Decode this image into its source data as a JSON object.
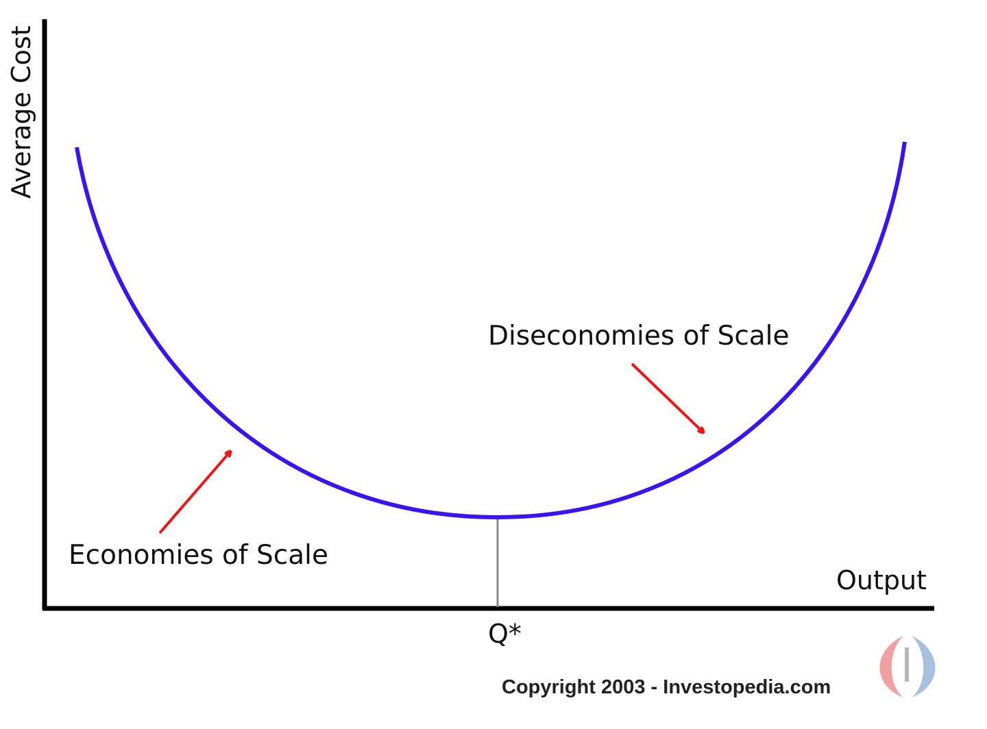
{
  "diagram": {
    "y_axis_label": "Average Cost",
    "x_axis_label": "Output",
    "x_marker_label": "Q*",
    "annotations": {
      "left": "Economies of Scale",
      "right": "Diseconomies of Scale"
    },
    "copyright": "Copyright 2003 - Investopedia.com",
    "logo_text": "I",
    "colors": {
      "curve": "#3a14f0",
      "arrows": "#f01414",
      "axes": "#000000",
      "marker_line": "#888888",
      "logo_left": "#f0a0a0",
      "logo_right": "#a8c0e0"
    }
  }
}
